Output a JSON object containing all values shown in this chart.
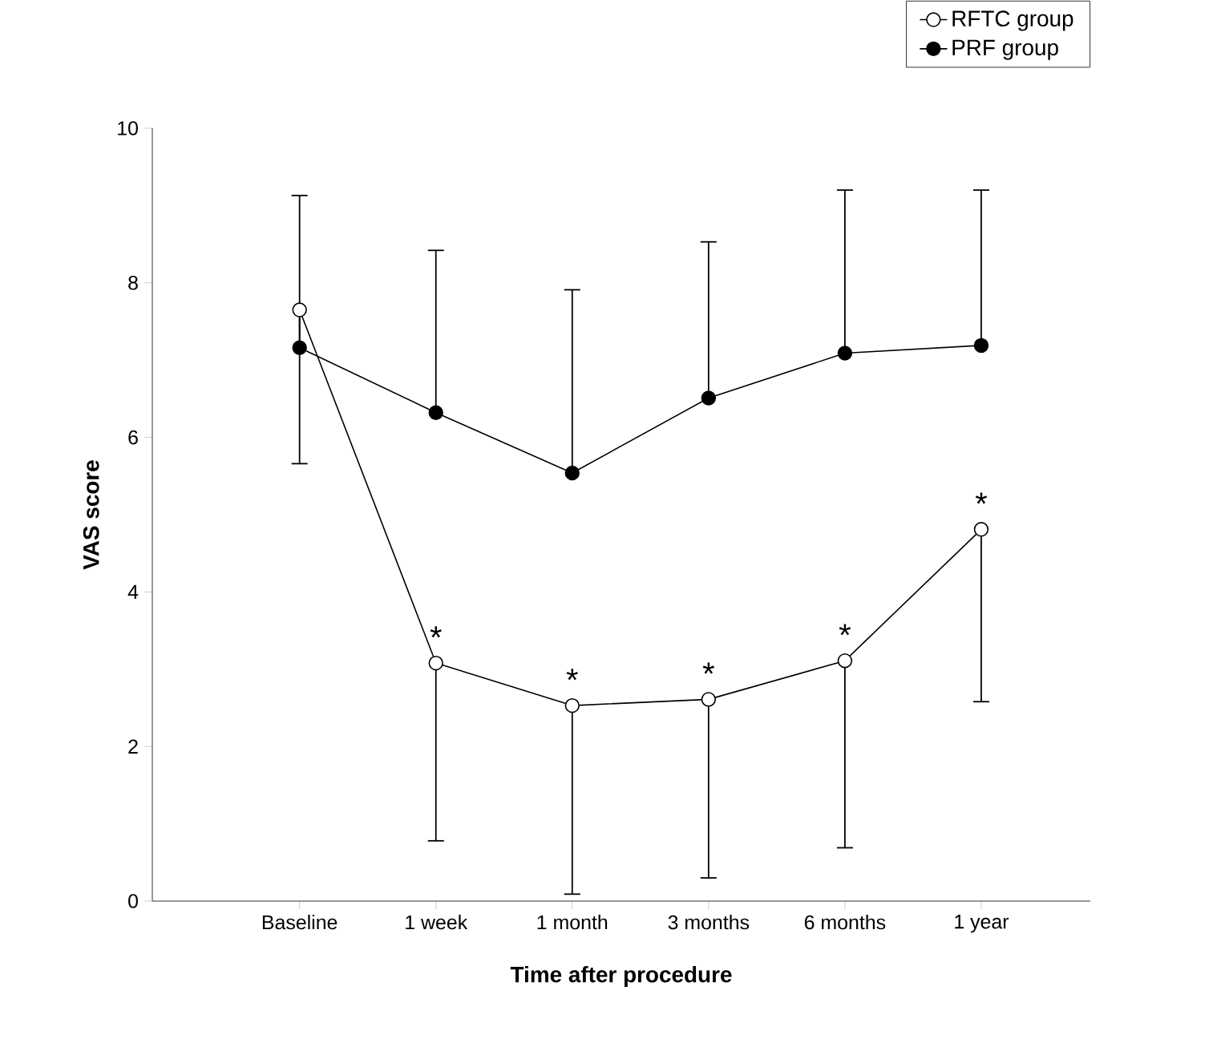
{
  "chart_data": {
    "type": "line",
    "xlabel": "Time after procedure",
    "ylabel": "VAS score",
    "categories": [
      "Baseline",
      "1 week",
      "1 month",
      "3 months",
      "6 months",
      "1 year"
    ],
    "series": [
      {
        "name": "RFTC group",
        "color": "#ffffff",
        "values": [
          7.65,
          3.08,
          2.53,
          2.61,
          3.11,
          4.81
        ],
        "errors": [
          [
            5.66,
            7.65
          ],
          [
            0.78,
            3.08
          ],
          [
            0.09,
            2.53
          ],
          [
            0.3,
            2.61
          ],
          [
            0.69,
            3.11
          ],
          [
            2.58,
            4.81
          ]
        ]
      },
      {
        "name": "PRF group",
        "color": "#000000",
        "values": [
          7.16,
          6.32,
          5.54,
          6.51,
          7.09,
          7.19
        ],
        "errors": [
          [
            7.16,
            9.13
          ],
          [
            6.32,
            8.42
          ],
          [
            5.54,
            7.91
          ],
          [
            6.51,
            8.53
          ],
          [
            7.09,
            9.2
          ],
          [
            7.19,
            9.2
          ]
        ]
      }
    ],
    "ylim": [
      0,
      10
    ],
    "yticks": [
      0,
      2,
      4,
      6,
      8,
      10
    ],
    "marker": "circle",
    "legend": "top right",
    "grid": false,
    "annotations": [
      {
        "text": "*",
        "x": "1 week",
        "y": 3.08
      },
      {
        "text": "*",
        "x": "1 month",
        "y": 2.53
      },
      {
        "text": "*",
        "x": "3 months",
        "y": 2.61
      },
      {
        "text": "*",
        "x": "6 months",
        "y": 3.11
      },
      {
        "text": "*",
        "x": "1 year",
        "y": 4.81
      }
    ]
  }
}
